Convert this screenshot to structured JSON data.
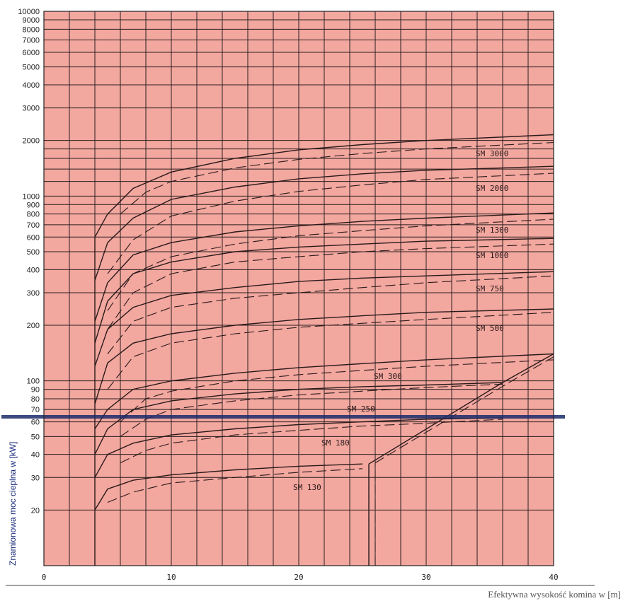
{
  "chart_data": {
    "type": "line",
    "title": "",
    "xlabel": "Efektywna wysokość komina w [m]",
    "ylabel": "Znamionowa moc cieplna w [kW]",
    "x_scale": "linear",
    "y_scale": "log",
    "xlim": [
      0,
      40
    ],
    "ylim": [
      10,
      10000
    ],
    "x_ticks": [
      "0",
      "10",
      "20",
      "30",
      "40"
    ],
    "y_ticks": [
      "10000",
      "9000",
      "8000",
      "7000",
      "6000",
      "5000",
      "4000",
      "3000",
      "2000",
      "1000",
      "900",
      "800",
      "700",
      "600",
      "500",
      "400",
      "300",
      "200",
      "100",
      "90",
      "80",
      "70",
      "60",
      "50",
      "40",
      "30",
      "20"
    ],
    "grid": true,
    "plot_background": "#f2a79f",
    "line_color": "#2a1a1a",
    "series": [
      {
        "name": "SM 3000",
        "solid": [
          [
            4,
            600
          ],
          [
            5,
            800
          ],
          [
            7,
            1100
          ],
          [
            10,
            1350
          ],
          [
            15,
            1600
          ],
          [
            20,
            1780
          ],
          [
            25,
            1900
          ],
          [
            30,
            2000
          ],
          [
            40,
            2150
          ]
        ],
        "dashed": [
          [
            6,
            800
          ],
          [
            8,
            1050
          ],
          [
            10,
            1200
          ],
          [
            15,
            1420
          ],
          [
            20,
            1580
          ],
          [
            25,
            1700
          ],
          [
            30,
            1800
          ],
          [
            40,
            1950
          ]
        ]
      },
      {
        "name": "SM 2000",
        "solid": [
          [
            4,
            350
          ],
          [
            5,
            560
          ],
          [
            7,
            760
          ],
          [
            10,
            960
          ],
          [
            15,
            1120
          ],
          [
            20,
            1240
          ],
          [
            25,
            1320
          ],
          [
            30,
            1380
          ],
          [
            40,
            1450
          ]
        ],
        "dashed": [
          [
            5,
            380
          ],
          [
            7,
            580
          ],
          [
            10,
            780
          ],
          [
            15,
            940
          ],
          [
            20,
            1060
          ],
          [
            25,
            1150
          ],
          [
            30,
            1230
          ],
          [
            40,
            1330
          ]
        ]
      },
      {
        "name": "SM 1300",
        "solid": [
          [
            4,
            210
          ],
          [
            5,
            340
          ],
          [
            7,
            480
          ],
          [
            10,
            560
          ],
          [
            15,
            640
          ],
          [
            20,
            690
          ],
          [
            25,
            730
          ],
          [
            30,
            760
          ],
          [
            40,
            810
          ]
        ],
        "dashed": [
          [
            5,
            240
          ],
          [
            7,
            380
          ],
          [
            10,
            470
          ],
          [
            15,
            550
          ],
          [
            20,
            610
          ],
          [
            25,
            650
          ],
          [
            30,
            690
          ],
          [
            40,
            750
          ]
        ]
      },
      {
        "name": "SM 1000",
        "solid": [
          [
            4,
            160
          ],
          [
            5,
            270
          ],
          [
            7,
            380
          ],
          [
            10,
            440
          ],
          [
            15,
            500
          ],
          [
            20,
            530
          ],
          [
            25,
            550
          ],
          [
            30,
            570
          ],
          [
            40,
            590
          ]
        ],
        "dashed": [
          [
            5,
            190
          ],
          [
            7,
            300
          ],
          [
            10,
            380
          ],
          [
            15,
            440
          ],
          [
            20,
            470
          ],
          [
            25,
            500
          ],
          [
            30,
            520
          ],
          [
            40,
            550
          ]
        ]
      },
      {
        "name": "SM 750",
        "solid": [
          [
            4,
            120
          ],
          [
            5,
            190
          ],
          [
            7,
            250
          ],
          [
            10,
            290
          ],
          [
            15,
            320
          ],
          [
            20,
            345
          ],
          [
            25,
            360
          ],
          [
            30,
            370
          ],
          [
            40,
            390
          ]
        ],
        "dashed": [
          [
            5,
            140
          ],
          [
            7,
            210
          ],
          [
            10,
            250
          ],
          [
            15,
            280
          ],
          [
            20,
            300
          ],
          [
            25,
            320
          ],
          [
            30,
            340
          ],
          [
            40,
            370
          ]
        ]
      },
      {
        "name": "SM 500",
        "solid": [
          [
            4,
            75
          ],
          [
            5,
            125
          ],
          [
            7,
            160
          ],
          [
            10,
            180
          ],
          [
            15,
            200
          ],
          [
            20,
            215
          ],
          [
            25,
            225
          ],
          [
            30,
            235
          ],
          [
            40,
            245
          ]
        ],
        "dashed": [
          [
            5,
            90
          ],
          [
            7,
            135
          ],
          [
            10,
            160
          ],
          [
            15,
            180
          ],
          [
            20,
            195
          ],
          [
            25,
            205
          ],
          [
            30,
            215
          ],
          [
            40,
            235
          ]
        ]
      },
      {
        "name": "SM 300",
        "solid": [
          [
            4,
            55
          ],
          [
            5,
            70
          ],
          [
            7,
            90
          ],
          [
            10,
            100
          ],
          [
            15,
            110
          ],
          [
            20,
            118
          ],
          [
            25,
            124
          ],
          [
            30,
            130
          ],
          [
            40,
            140
          ]
        ],
        "dashed": [
          [
            6,
            60
          ],
          [
            8,
            80
          ],
          [
            10,
            88
          ],
          [
            15,
            100
          ],
          [
            20,
            108
          ],
          [
            25,
            114
          ],
          [
            30,
            120
          ],
          [
            40,
            130
          ]
        ]
      },
      {
        "name": "SM 250",
        "solid": [
          [
            4,
            40
          ],
          [
            5,
            55
          ],
          [
            7,
            70
          ],
          [
            10,
            78
          ],
          [
            15,
            85
          ],
          [
            20,
            90
          ],
          [
            25,
            93
          ],
          [
            30,
            95
          ],
          [
            36,
            98
          ]
        ],
        "dashed": [
          [
            6,
            50
          ],
          [
            8,
            62
          ],
          [
            10,
            70
          ],
          [
            15,
            78
          ],
          [
            20,
            84
          ],
          [
            25,
            88
          ],
          [
            30,
            92
          ],
          [
            36,
            96
          ]
        ]
      },
      {
        "name": "SM 180",
        "solid": [
          [
            4,
            30
          ],
          [
            5,
            40
          ],
          [
            7,
            46
          ],
          [
            10,
            51
          ],
          [
            15,
            55
          ],
          [
            20,
            58
          ],
          [
            25,
            60
          ],
          [
            30,
            62
          ],
          [
            36,
            63
          ]
        ],
        "dashed": [
          [
            6,
            36
          ],
          [
            8,
            42
          ],
          [
            10,
            46
          ],
          [
            15,
            51
          ],
          [
            20,
            54
          ],
          [
            25,
            57
          ],
          [
            30,
            59
          ],
          [
            36,
            62
          ]
        ]
      },
      {
        "name": "SM 130",
        "solid": [
          [
            4,
            20
          ],
          [
            5,
            26
          ],
          [
            7,
            29
          ],
          [
            10,
            31
          ],
          [
            15,
            33
          ],
          [
            20,
            34.5
          ],
          [
            25,
            35.5
          ]
        ],
        "dashed": [
          [
            5,
            22
          ],
          [
            7,
            25
          ],
          [
            10,
            28
          ],
          [
            15,
            30
          ],
          [
            20,
            32
          ],
          [
            25,
            33.5
          ]
        ]
      },
      {
        "name": "",
        "solid": [
          [
            4,
            10
          ],
          [
            4,
            600
          ]
        ],
        "dashed": []
      },
      {
        "name": "",
        "solid": [
          [
            25.5,
            10
          ],
          [
            25.5,
            35.5
          ]
        ],
        "dashed": [
          [
            26,
            10
          ],
          [
            26,
            36
          ]
        ]
      },
      {
        "name": "",
        "solid": [
          [
            25.5,
            35.5
          ],
          [
            36,
            98
          ],
          [
            40,
            140
          ]
        ],
        "dashed": [
          [
            26,
            36
          ],
          [
            36.5,
            98
          ],
          [
            40,
            135
          ]
        ]
      }
    ]
  }
}
